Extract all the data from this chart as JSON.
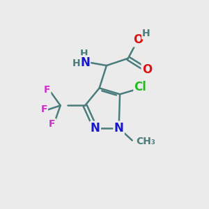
{
  "bg_color": "#ebebeb",
  "bond_color": "#4a7c7c",
  "bond_width": 1.8,
  "atom_colors": {
    "N": "#1818cc",
    "O": "#dd1111",
    "F": "#cc33cc",
    "Cl": "#22bb22",
    "H": "#4a7c7c",
    "C": "#4a7c7c"
  },
  "font_size_main": 12,
  "font_size_small": 10,
  "font_size_tiny": 9
}
